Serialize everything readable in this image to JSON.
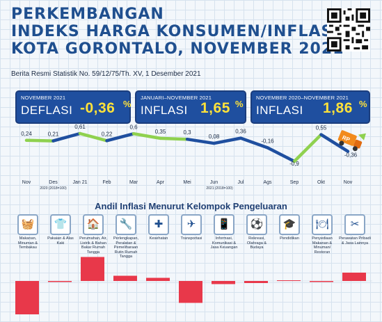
{
  "header": {
    "title_line1": "PERKEMBANGAN",
    "title_line2": "INDEKS HARGA KONSUMEN/INFLASI",
    "title_line3": "KOTA GORONTALO, NOVEMBER 2021",
    "subtitle": "Berita Resmi Statistik No. 59/12/75/Th. XV, 1 Desember 2021"
  },
  "boxes": [
    {
      "label": "NOVEMBER 2021",
      "kind": "DEFLASI",
      "value": "-0,36",
      "pct": "%"
    },
    {
      "label": "JANUARI–NOVEMBER 2021",
      "kind": "INFLASI",
      "value": "1,65",
      "pct": "%"
    },
    {
      "label": "NOVEMBER 2020–NOVEMBER 2021",
      "kind": "INFLASI",
      "value": "1,86",
      "pct": "%"
    }
  ],
  "truck_label": "RP",
  "colors": {
    "dark_blue": "#1f4f9f",
    "green": "#8fd14f",
    "bar_red": "#e8384a",
    "title_blue": "#1f4f8f"
  },
  "chart_data": [
    {
      "type": "line",
      "categories": [
        "Nov",
        "Des",
        "Jan 21",
        "Feb",
        "Mar",
        "Apr",
        "Mei",
        "Jun",
        "Jul",
        "Ags",
        "Sep",
        "Okt",
        "Nov"
      ],
      "values": [
        0.24,
        0.21,
        0.61,
        0.22,
        0.6,
        0.35,
        0.3,
        0.08,
        0.36,
        -0.16,
        -0.9,
        0.55,
        -0.36
      ],
      "value_labels": [
        "0,24",
        "0,21",
        "0,61",
        "0,22",
        "0,6",
        "0,35",
        "0,3",
        "0,08",
        "0,36",
        "-0,16",
        "-0,9",
        "0,55",
        "-0,36"
      ],
      "base_notes": [
        "2020 (2018=100)",
        "2021 (2018=100)"
      ],
      "segment_colors": [
        "green",
        "blue",
        "green",
        "blue",
        "green",
        "green",
        "blue",
        "blue",
        "blue",
        "blue",
        "green",
        "blue"
      ],
      "xlabel": "",
      "ylabel": ""
    },
    {
      "type": "bar",
      "title": "Andil Inflasi Menurut Kelompok Pengeluaran",
      "categories": [
        "Makanan, Minuman & Tembakau",
        "Pakaian & Alas Kaki",
        "Perumahan, Air, Listrik & Bahan Bakar Rumah Tangga",
        "Perlengkapan, Peralatan & Pemeliharaan Rutin Rumah Tangga",
        "Kesehatan",
        "Transportasi",
        "Informasi, Komunikasi & Jasa Keuangan",
        "Rekreasi, Olahraga & Budaya",
        "Pendidikan",
        "Penyediaan Makanan & Minuman/ Restoran",
        "Perawatan Pribadi & Jasa Lainnya"
      ],
      "icons": [
        "food-icon",
        "clothing-icon",
        "house-icon",
        "tools-icon",
        "medical-kit-icon",
        "airplane-icon",
        "phone-icon",
        "recreation-icon",
        "graduation-icon",
        "restaurant-icon",
        "personal-care-icon"
      ],
      "icon_glyphs": [
        "🧺",
        "👕",
        "🏠",
        "🔧",
        "✚",
        "✈",
        "📱",
        "⚽",
        "🎓",
        "🍽",
        "✂"
      ],
      "values": [
        -0.32,
        -0.01,
        0.23,
        0.05,
        0.03,
        -0.21,
        -0.03,
        -0.02,
        0.0,
        -0.01,
        0.08
      ],
      "color": "#e8384a"
    }
  ]
}
